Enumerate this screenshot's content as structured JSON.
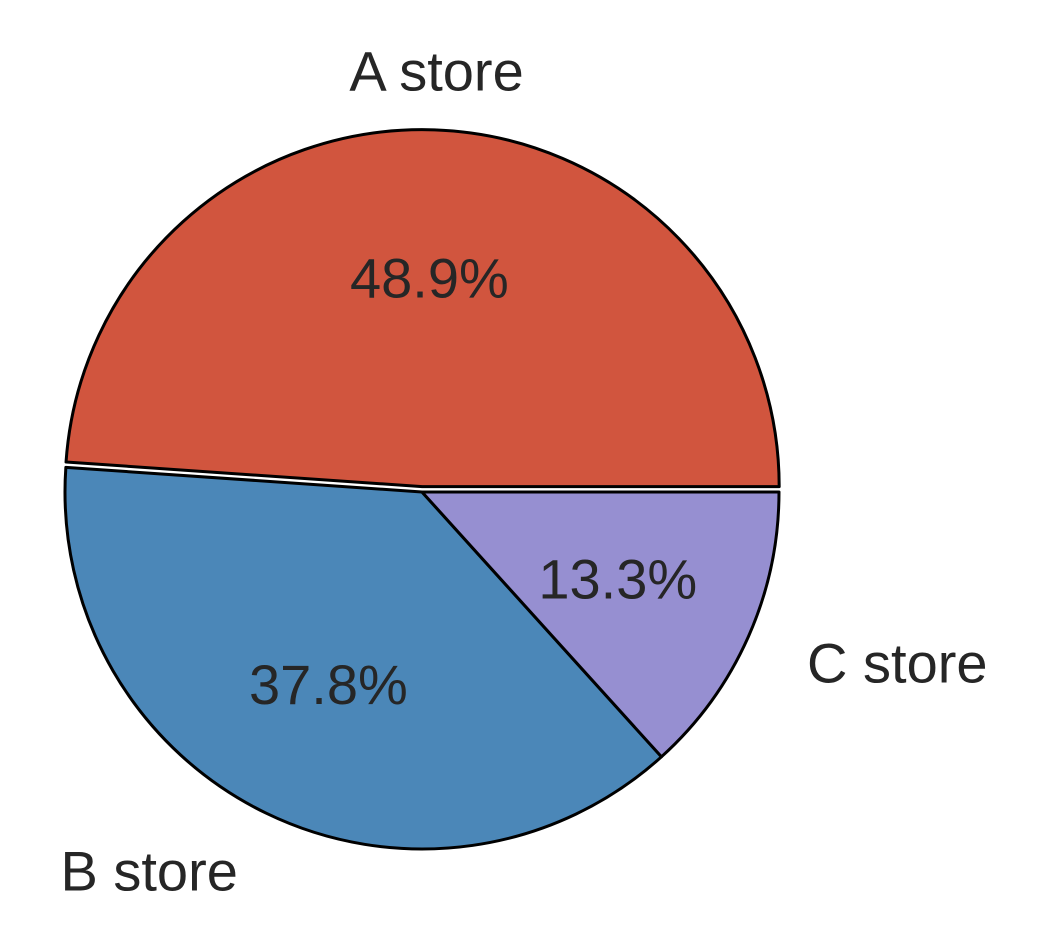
{
  "chart_data": {
    "type": "pie",
    "slices": [
      {
        "label": "A store",
        "value": 48.9,
        "pct_text": "48.9%",
        "color": "#d1553e",
        "explode": 0.015
      },
      {
        "label": "B store",
        "value": 37.8,
        "pct_text": "37.8%",
        "color": "#4b87b8",
        "explode": 0
      },
      {
        "label": "C store",
        "value": 13.3,
        "pct_text": "13.3%",
        "color": "#968fd1",
        "explode": 0
      }
    ],
    "start_angle_deg": 0,
    "direction": "counterclockwise",
    "edge_color": "#000000"
  }
}
